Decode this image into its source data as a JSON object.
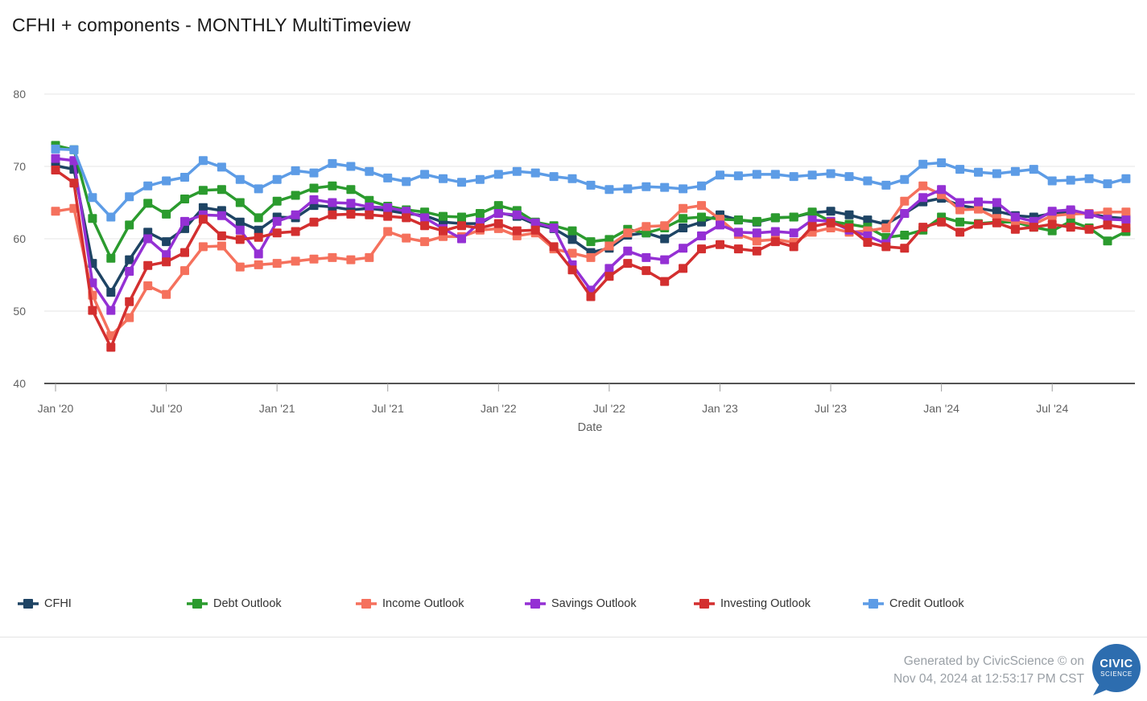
{
  "title": "CFHI + components - MONTHLY MultiTimeview",
  "chart_data": {
    "type": "line",
    "title": "CFHI + components - MONTHLY MultiTimeview",
    "xlabel": "Date",
    "ylabel": "",
    "ylim": [
      40,
      80
    ],
    "grid": true,
    "legend_position": "bottom",
    "y_ticks": [
      40,
      50,
      60,
      70,
      80
    ],
    "x_tick_labels": [
      "Jan '20",
      "Jul '20",
      "Jan '21",
      "Jul '21",
      "Jan '22",
      "Jul '22",
      "Jan '23",
      "Jul '23",
      "Jan '24",
      "Jul '24"
    ],
    "x_tick_month_indices": [
      0,
      6,
      12,
      18,
      24,
      30,
      36,
      42,
      48,
      54
    ],
    "months": [
      "Jan '20",
      "Feb '20",
      "Mar '20",
      "Apr '20",
      "May '20",
      "Jun '20",
      "Jul '20",
      "Aug '20",
      "Sep '20",
      "Oct '20",
      "Nov '20",
      "Dec '20",
      "Jan '21",
      "Feb '21",
      "Mar '21",
      "Apr '21",
      "May '21",
      "Jun '21",
      "Jul '21",
      "Aug '21",
      "Sep '21",
      "Oct '21",
      "Nov '21",
      "Dec '21",
      "Jan '22",
      "Feb '22",
      "Mar '22",
      "Apr '22",
      "May '22",
      "Jun '22",
      "Jul '22",
      "Aug '22",
      "Sep '22",
      "Oct '22",
      "Nov '22",
      "Dec '22",
      "Jan '23",
      "Feb '23",
      "Mar '23",
      "Apr '23",
      "May '23",
      "Jun '23",
      "Jul '23",
      "Aug '23",
      "Sep '23",
      "Oct '23",
      "Nov '23",
      "Dec '23",
      "Jan '24",
      "Feb '24",
      "Mar '24",
      "Apr '24",
      "May '24",
      "Jun '24",
      "Jul '24",
      "Aug '24",
      "Sep '24",
      "Oct '24",
      "Nov '24"
    ],
    "series": [
      {
        "name": "CFHI",
        "color": "#1e4464",
        "values": [
          70.1,
          69.6,
          56.6,
          52.6,
          57.1,
          60.9,
          59.6,
          61.4,
          64.3,
          63.9,
          62.3,
          61.2,
          63.0,
          62.9,
          64.6,
          64.4,
          64.0,
          64.2,
          63.9,
          63.5,
          63.2,
          62.3,
          62.1,
          62.1,
          63.6,
          63.1,
          62.0,
          61.4,
          59.9,
          58.1,
          58.7,
          60.5,
          60.8,
          60.0,
          61.5,
          62.3,
          63.3,
          62.6,
          62.3,
          62.9,
          63.0,
          63.6,
          63.8,
          63.3,
          62.6,
          62.0,
          63.5,
          65.1,
          65.6,
          64.6,
          64.2,
          63.8,
          63.2,
          63.0,
          63.5,
          63.8,
          63.4,
          63.0,
          62.8
        ]
      },
      {
        "name": "Debt Outlook",
        "color": "#2b9b2e",
        "values": [
          72.9,
          72.3,
          62.8,
          57.3,
          61.9,
          64.9,
          63.4,
          65.5,
          66.7,
          66.8,
          65.0,
          62.9,
          65.2,
          66.0,
          67.0,
          67.3,
          66.8,
          65.3,
          64.5,
          64.0,
          63.7,
          63.1,
          63.0,
          63.5,
          64.6,
          63.9,
          62.3,
          61.8,
          61.1,
          59.6,
          59.9,
          61.3,
          60.8,
          61.5,
          62.8,
          63.0,
          62.7,
          62.6,
          62.4,
          62.9,
          63.0,
          63.7,
          62.4,
          62.0,
          61.6,
          60.2,
          60.5,
          61.2,
          63.0,
          62.3,
          62.1,
          62.3,
          62.3,
          61.6,
          61.1,
          62.4,
          61.5,
          59.7,
          61.0
        ]
      },
      {
        "name": "Income Outlook",
        "color": "#f5715d",
        "values": [
          63.8,
          64.2,
          52.2,
          46.6,
          49.1,
          53.5,
          52.3,
          55.6,
          58.9,
          59.0,
          56.1,
          56.4,
          56.6,
          56.9,
          57.2,
          57.4,
          57.1,
          57.4,
          61.0,
          60.1,
          59.6,
          60.3,
          60.3,
          61.2,
          61.4,
          60.4,
          60.8,
          58.6,
          58.0,
          57.4,
          59.0,
          60.8,
          61.7,
          61.8,
          64.2,
          64.6,
          62.7,
          60.6,
          59.7,
          59.9,
          59.5,
          60.9,
          61.5,
          60.9,
          61.1,
          61.5,
          65.2,
          67.3,
          66.1,
          64.0,
          64.1,
          62.8,
          62.4,
          62.0,
          63.2,
          63.4,
          63.5,
          63.7,
          63.7
        ]
      },
      {
        "name": "Savings Outlook",
        "color": "#9430d4",
        "values": [
          71.1,
          70.8,
          53.9,
          50.1,
          55.5,
          60.0,
          57.8,
          62.4,
          63.3,
          63.2,
          61.2,
          57.9,
          62.4,
          63.3,
          65.4,
          65.0,
          64.9,
          64.4,
          64.3,
          63.8,
          62.9,
          61.4,
          60.0,
          62.3,
          63.5,
          63.3,
          62.2,
          61.5,
          56.4,
          52.9,
          55.9,
          58.3,
          57.4,
          57.1,
          58.7,
          60.4,
          61.9,
          60.9,
          60.8,
          61.0,
          60.8,
          62.6,
          62.4,
          61.2,
          60.4,
          59.3,
          63.5,
          65.7,
          66.8,
          65.0,
          65.1,
          65.0,
          63.0,
          62.4,
          63.8,
          64.0,
          63.4,
          62.7,
          62.6
        ]
      },
      {
        "name": "Investing Outlook",
        "color": "#d32f2f",
        "values": [
          69.5,
          67.7,
          50.1,
          45.0,
          51.3,
          56.3,
          56.8,
          58.1,
          62.7,
          60.4,
          59.9,
          60.2,
          60.8,
          61.0,
          62.3,
          63.3,
          63.4,
          63.3,
          63.1,
          62.9,
          61.8,
          61.1,
          61.8,
          61.5,
          62.1,
          61.1,
          61.2,
          58.9,
          55.7,
          52.0,
          54.8,
          56.6,
          55.6,
          54.1,
          55.9,
          58.6,
          59.2,
          58.6,
          58.3,
          59.6,
          58.9,
          61.7,
          62.2,
          61.5,
          59.5,
          58.9,
          58.7,
          61.6,
          62.3,
          60.9,
          62.0,
          62.2,
          61.3,
          61.6,
          62.0,
          61.6,
          61.3,
          61.9,
          61.5
        ]
      },
      {
        "name": "Credit Outlook",
        "color": "#5d9ce6",
        "values": [
          72.4,
          72.3,
          65.7,
          63.0,
          65.8,
          67.3,
          68.0,
          68.5,
          70.8,
          69.9,
          68.2,
          66.9,
          68.2,
          69.4,
          69.1,
          70.4,
          70.0,
          69.3,
          68.4,
          67.9,
          68.9,
          68.3,
          67.8,
          68.2,
          68.9,
          69.3,
          69.1,
          68.6,
          68.3,
          67.4,
          66.8,
          66.9,
          67.2,
          67.1,
          66.9,
          67.3,
          68.8,
          68.7,
          68.9,
          68.9,
          68.6,
          68.8,
          69.0,
          68.6,
          68.0,
          67.4,
          68.2,
          70.3,
          70.5,
          69.6,
          69.2,
          69.0,
          69.3,
          69.6,
          68.0,
          68.1,
          68.3,
          67.6,
          68.3
        ]
      }
    ]
  },
  "footer": {
    "line1": "Generated by CivicScience © on",
    "line2": "Nov 04, 2024 at 12:53:17 PM CST",
    "logo_top": "CIVIC",
    "logo_bottom": "SCIENCE",
    "logo_color": "#2d6daf"
  }
}
